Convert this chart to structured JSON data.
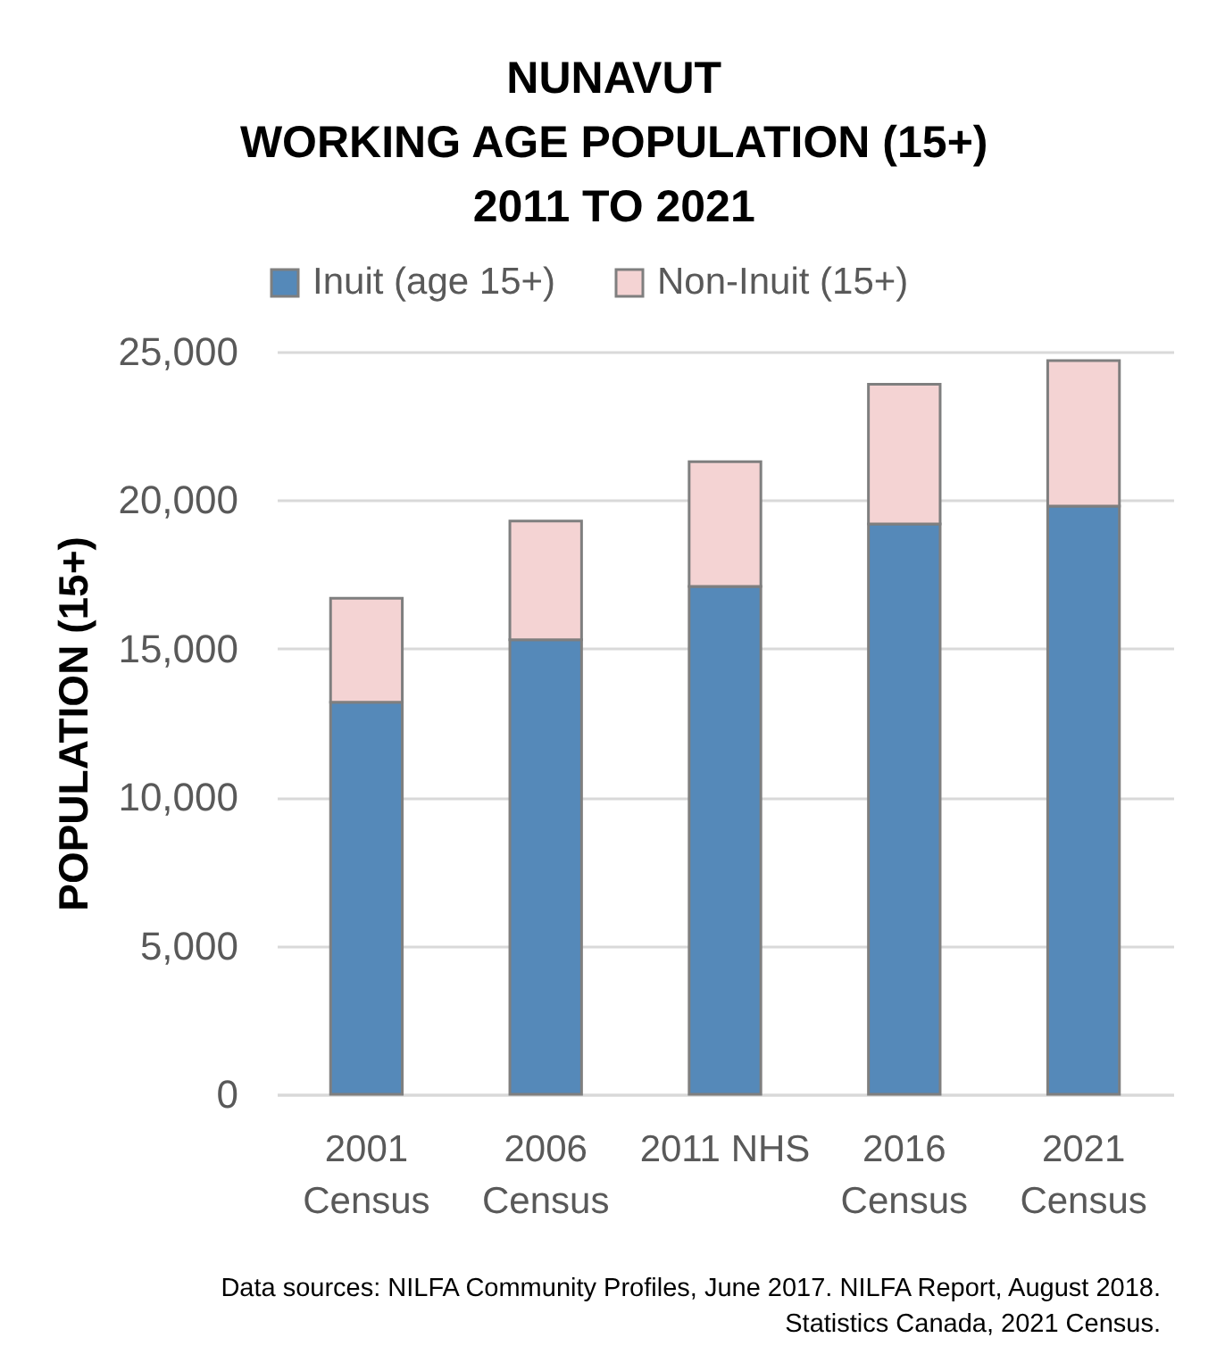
{
  "chart_data": {
    "type": "bar",
    "title": "NUNAVUT\nWORKING AGE POPULATION (15+)\n2011 TO 2021",
    "ylabel": "POPULATION (15+)",
    "categories": [
      "2001 Census",
      "2006 Census",
      "2011 NHS",
      "2016 Census",
      "2021 Census"
    ],
    "series": [
      {
        "name": "Inuit (age 15+)",
        "color": "#5589b9",
        "values": [
          13200,
          15300,
          17100,
          19200,
          19800
        ]
      },
      {
        "name": "Non-Inuit (15+)",
        "color": "#f4d3d3",
        "values": [
          3500,
          4000,
          4200,
          4700,
          4900
        ]
      }
    ],
    "stacked": true,
    "ylim": [
      0,
      25000
    ],
    "yticks": [
      0,
      {
        "value": 5000,
        "label": "5,000"
      },
      {
        "value": 10000,
        "label": "10,000"
      },
      {
        "value": 15000,
        "label": "15,000"
      },
      {
        "value": 20000,
        "label": "20,000"
      },
      {
        "value": 25000,
        "label": "25,000"
      }
    ],
    "grid": "y",
    "legend": "top",
    "annotations": [
      "Data sources: NILFA Community Profiles, June 2017. NILFA Report, August 2018.",
      "Statistics Canada, 2021 Census."
    ]
  }
}
